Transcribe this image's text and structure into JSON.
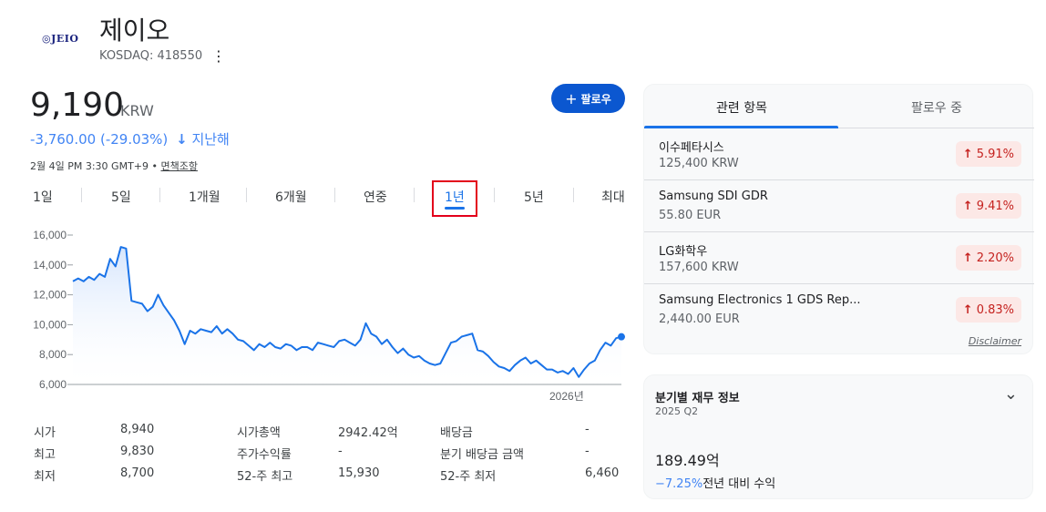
{
  "header": {
    "logo_text": "JEIO",
    "company_name": "제이오",
    "ticker": "KOSDAQ: 418550",
    "more_icon": "⋮"
  },
  "quote": {
    "price": "9,190",
    "currency": "KRW",
    "change_value": "-3,760.00 (-29.03%)",
    "change_arrow": "↓",
    "change_period": "지난해",
    "timestamp": "2월 4일 PM 3:30 GMT+9 •",
    "disclaimer_link": "면책조항",
    "follow_plus": "+",
    "follow_label": "팔로우"
  },
  "range_tabs": [
    {
      "label": "1일"
    },
    {
      "label": "5일"
    },
    {
      "label": "1개월"
    },
    {
      "label": "6개월"
    },
    {
      "label": "연중"
    },
    {
      "label": "1년",
      "active": true
    },
    {
      "label": "5년"
    },
    {
      "label": "최대"
    }
  ],
  "chart_data": {
    "type": "area",
    "yticks": [
      "16,000",
      "14,000",
      "12,000",
      "10,000",
      "8,000",
      "6,000"
    ],
    "ylim": [
      6000,
      16000
    ],
    "xtick": "2026년",
    "values": [
      12900,
      13100,
      12900,
      13200,
      13000,
      13400,
      13200,
      14400,
      13900,
      15200,
      15100,
      11600,
      11500,
      11400,
      10900,
      11200,
      12000,
      11300,
      10800,
      10300,
      9600,
      8700,
      9600,
      9400,
      9700,
      9600,
      9500,
      9900,
      9400,
      9700,
      9400,
      9000,
      8900,
      8600,
      8300,
      8700,
      8500,
      8800,
      8500,
      8400,
      8700,
      8600,
      8300,
      8500,
      8500,
      8300,
      8800,
      8700,
      8600,
      8500,
      8900,
      9000,
      8800,
      8600,
      9000,
      10100,
      9400,
      9200,
      8700,
      9000,
      8500,
      8100,
      8400,
      8000,
      7800,
      7900,
      7600,
      7400,
      7300,
      7400,
      8100,
      8800,
      8900,
      9200,
      9300,
      9400,
      8300,
      8200,
      7900,
      7500,
      7200,
      7100,
      6900,
      7300,
      7600,
      7800,
      7400,
      7600,
      7300,
      7000,
      7000,
      6800,
      6900,
      6700,
      7100,
      6500,
      7000,
      7400,
      7600,
      8300,
      8800,
      8600,
      9100,
      9190
    ],
    "colors": {
      "line": "#1a73e8",
      "fill": "#e8f0fe",
      "grid": "#e0e0e0"
    }
  },
  "stats": [
    [
      {
        "label": "시가",
        "value": "8,940"
      },
      {
        "label": "시가총액",
        "value": "2942.42억"
      },
      {
        "label": "배당금",
        "value": "-"
      }
    ],
    [
      {
        "label": "최고",
        "value": "9,830"
      },
      {
        "label": "주가수익률",
        "value": "-"
      },
      {
        "label": "분기 배당금 금액",
        "value": "-"
      }
    ],
    [
      {
        "label": "최저",
        "value": "8,700"
      },
      {
        "label": "52-주 최고",
        "value": "15,930"
      },
      {
        "label": "52-주 최저",
        "value": "6,460"
      }
    ]
  ],
  "related": {
    "tab_active": "관련 항목",
    "tab_inactive": "팔로우 중",
    "items": [
      {
        "name": "이수페타시스",
        "price": "125,400 KRW",
        "change": "5.91%"
      },
      {
        "name": "Samsung SDI GDR",
        "price": "55.80 EUR",
        "change": "9.41%"
      },
      {
        "name": "LG화학우",
        "price": "157,600 KRW",
        "change": "2.20%"
      },
      {
        "name": "Samsung Electronics 1 GDS Rep...",
        "price": "2,440.00 EUR",
        "change": "0.83%"
      }
    ],
    "up_arrow": "↑",
    "disclaimer": "Disclaimer"
  },
  "financials": {
    "title": "분기별 재무 정보",
    "period": "2025 Q2",
    "chevron": "⌄",
    "value": "189.49억",
    "change_pct": "−7.25%",
    "change_label": "전년 대비 수익"
  }
}
